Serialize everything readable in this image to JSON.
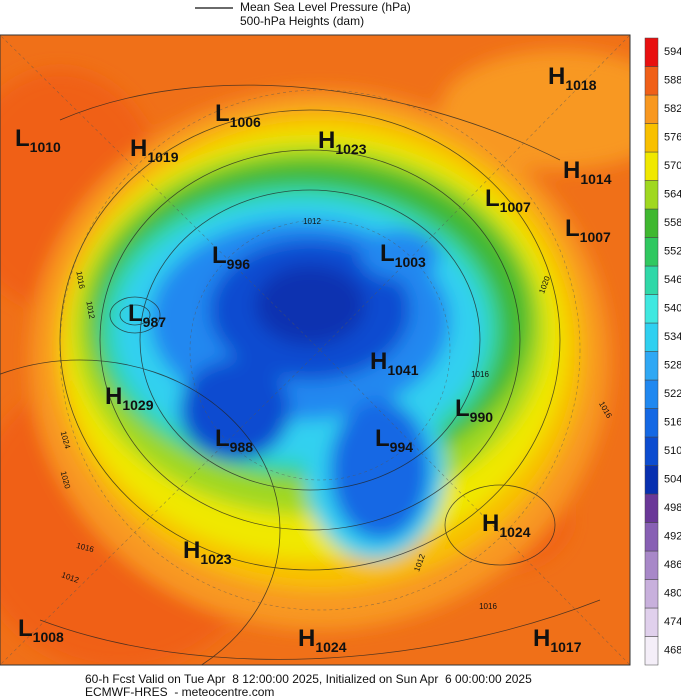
{
  "header": {
    "lines": [
      "Mean Sea Level Pressure (hPa)",
      "500-hPa Heights (dam)"
    ]
  },
  "colorbar": {
    "ticks": [
      468,
      474,
      480,
      486,
      492,
      498,
      504,
      510,
      516,
      522,
      528,
      534,
      540,
      546,
      552,
      558,
      564,
      570,
      576,
      582,
      588,
      594
    ],
    "colors": [
      "#f4eef8",
      "#e0d0ec",
      "#c8b0dc",
      "#a888c8",
      "#8860b4",
      "#6a3898",
      "#0830b0",
      "#0c4cd0",
      "#1468e4",
      "#2088f0",
      "#30a8f4",
      "#30d0f0",
      "#40e8e0",
      "#30d8a8",
      "#30c860",
      "#40b830",
      "#a0d820",
      "#f0e800",
      "#f8c000",
      "#f89820",
      "#f06018",
      "#e81010"
    ]
  },
  "systems": [
    {
      "letter": "L",
      "value": 1010
    },
    {
      "letter": "H",
      "value": 1019
    },
    {
      "letter": "L",
      "value": 1006
    },
    {
      "letter": "H",
      "value": 1023
    },
    {
      "letter": "H",
      "value": 1018
    },
    {
      "letter": "H",
      "value": 1014
    },
    {
      "letter": "L",
      "value": 1007
    },
    {
      "letter": "L",
      "value": 1007
    },
    {
      "letter": "L",
      "value": 996
    },
    {
      "letter": "L",
      "value": 1003
    },
    {
      "letter": "L",
      "value": 987
    },
    {
      "letter": "H",
      "value": 1041
    },
    {
      "letter": "H",
      "value": 1029
    },
    {
      "letter": "L",
      "value": 990
    },
    {
      "letter": "L",
      "value": 988
    },
    {
      "letter": "L",
      "value": 994
    },
    {
      "letter": "H",
      "value": 1024
    },
    {
      "letter": "H",
      "value": 1023
    },
    {
      "letter": "L",
      "value": 1008
    },
    {
      "letter": "H",
      "value": 1024
    },
    {
      "letter": "H",
      "value": 1017
    }
  ],
  "contour_labels": [
    "1012",
    "1016",
    "1012",
    "1024",
    "1020",
    "1016",
    "1012",
    "1016",
    "1020",
    "1016",
    "1012",
    "1016"
  ],
  "footer": {
    "lines": [
      "60-h Fcst Valid on Tue Apr  8 12:00:00 2025, Initialized on Sun Apr  6 00:00:00 2025",
      "ECMWF-HRES  - meteocentre.com"
    ]
  }
}
